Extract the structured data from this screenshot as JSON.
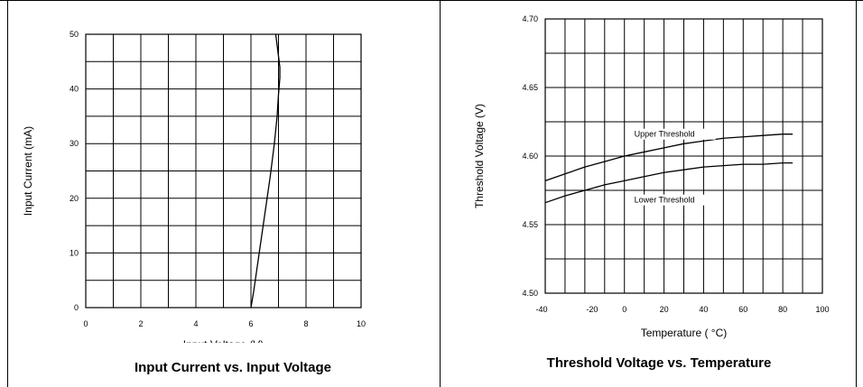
{
  "chart_data": [
    {
      "type": "line",
      "title": "Input Current vs. Input Voltage",
      "xlabel": "Input Voltage (V)",
      "ylabel": "Input Current (mA)",
      "xlim": [
        0,
        10
      ],
      "ylim": [
        0,
        50
      ],
      "x_ticks": [
        0,
        2,
        4,
        6,
        8,
        10
      ],
      "y_ticks": [
        0,
        10,
        20,
        30,
        40,
        50
      ],
      "x_grid_step": 1,
      "y_grid_step": 5,
      "grid": true,
      "series": [
        {
          "x": [
            6.0,
            6.1,
            6.3,
            6.5,
            6.7,
            6.85,
            6.95,
            7.0,
            7.05,
            7.05,
            7.0,
            6.95,
            6.9
          ],
          "y": [
            0,
            3,
            10,
            17,
            24,
            30,
            35,
            39,
            42,
            44,
            46,
            48,
            50
          ]
        }
      ]
    },
    {
      "type": "line",
      "title": "Threshold Voltage vs. Temperature",
      "xlabel": "Temperature ( °C)",
      "ylabel": "Threshold Voltage (V)",
      "xlim": [
        -40,
        100
      ],
      "ylim": [
        4.5,
        4.7
      ],
      "x_ticks": [
        -40,
        -20,
        0,
        20,
        40,
        60,
        80,
        100
      ],
      "y_ticks": [
        4.5,
        4.55,
        4.6,
        4.65,
        4.7
      ],
      "x_grid_step": 10,
      "y_grid_step": 0.025,
      "grid": true,
      "series": [
        {
          "name": "Upper Threshold",
          "x": [
            -40,
            -30,
            -20,
            -10,
            0,
            10,
            20,
            30,
            40,
            50,
            60,
            70,
            80,
            85
          ],
          "y": [
            4.582,
            4.587,
            4.592,
            4.596,
            4.6,
            4.603,
            4.606,
            4.609,
            4.611,
            4.613,
            4.614,
            4.615,
            4.616,
            4.616
          ]
        },
        {
          "name": "Lower Threshold",
          "x": [
            -40,
            -30,
            -20,
            -10,
            0,
            10,
            20,
            30,
            40,
            50,
            60,
            70,
            80,
            85
          ],
          "y": [
            4.566,
            4.571,
            4.575,
            4.579,
            4.582,
            4.585,
            4.588,
            4.59,
            4.592,
            4.593,
            4.594,
            4.594,
            4.595,
            4.595
          ]
        }
      ]
    }
  ]
}
